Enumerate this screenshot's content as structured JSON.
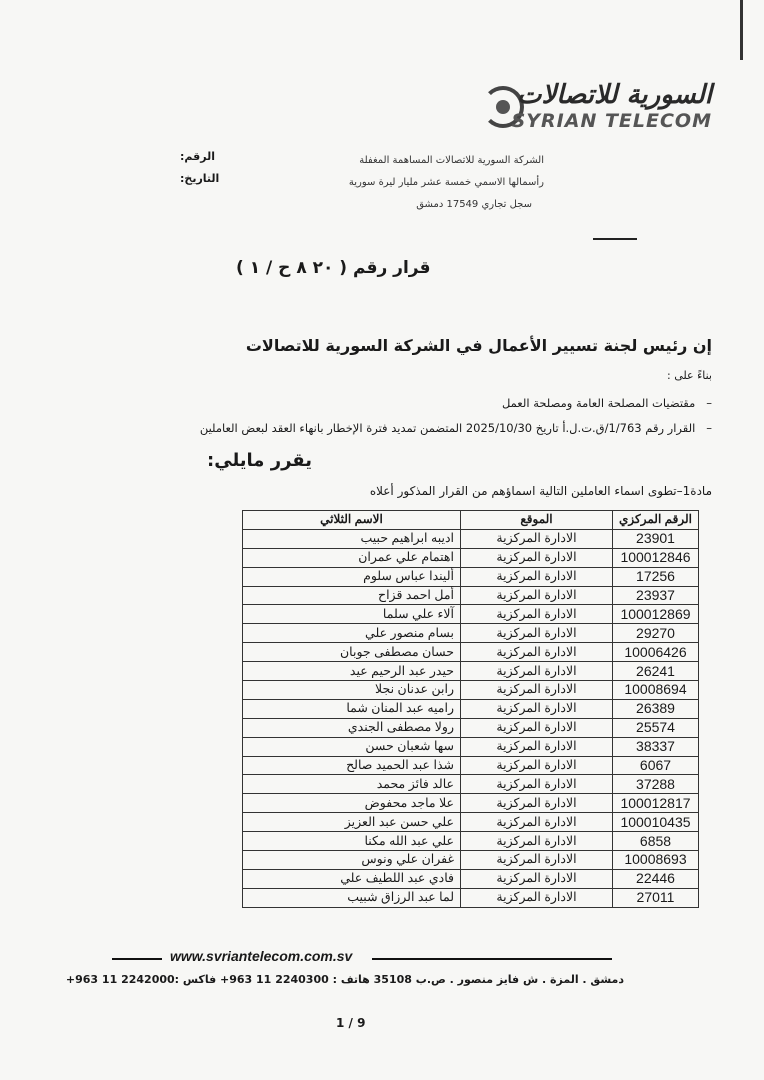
{
  "letterhead": {
    "logo_ar": "السورية للاتصالات",
    "logo_en": "SYRIAN TELECOM",
    "company_lines": [
      "الشركة السورية للاتصالات المساهمة المغفلة",
      "رأسمالها الاسمي خمسة عشر مليار ليرة سورية",
      "سجل تجاري 17549 دمشق"
    ],
    "number_label": "الرقم:",
    "date_label": "التاريخ:"
  },
  "decision": {
    "title": "قرار رقم (  ٢٠ ٨ ح / ١  )",
    "heading": "إن رئيس لجنة تسيير الأعمال في الشركة السورية للاتصالات",
    "based_on": "بناءً على :",
    "bullets": [
      "مقتضيات المصلحة العامة ومصلحة العمل",
      "القرار رقم 1/763/ق.ت.ل.أ تاريخ 2025/10/30 المتضمن تمديد فترة الإخطار بانهاء العقد لبعض العاملين"
    ],
    "decides": "يقرر مايلي:",
    "article1": "مادة1–تطوى اسماء العاملين التالية اسماؤهم من القرار المذكور أعلاه"
  },
  "table": {
    "headers": {
      "id": "الرقم المركزي",
      "location": "الموقع",
      "name": "الاسم الثلاثي"
    },
    "rows": [
      {
        "id": "23901",
        "location": "الادارة المركزية",
        "name": "اديبه ابراهيم حبيب"
      },
      {
        "id": "100012846",
        "location": "الادارة المركزية",
        "name": "اهتمام علي عمران"
      },
      {
        "id": "17256",
        "location": "الادارة المركزية",
        "name": "أليندا عباس سلوم"
      },
      {
        "id": "23937",
        "location": "الادارة المركزية",
        "name": "أمل احمد قزاح"
      },
      {
        "id": "100012869",
        "location": "الادارة المركزية",
        "name": "آلاء علي سلما"
      },
      {
        "id": "29270",
        "location": "الادارة المركزية",
        "name": "بسام منصور علي"
      },
      {
        "id": "10006426",
        "location": "الادارة المركزية",
        "name": "حسان مصطفى جوبان"
      },
      {
        "id": "26241",
        "location": "الادارة المركزية",
        "name": "حيدر عبد الرحيم عيد"
      },
      {
        "id": "10008694",
        "location": "الادارة المركزية",
        "name": "رابن عدنان نجلا"
      },
      {
        "id": "26389",
        "location": "الادارة المركزية",
        "name": "راميه عبد المنان شما"
      },
      {
        "id": "25574",
        "location": "الادارة المركزية",
        "name": "رولا مصطفى الجندي"
      },
      {
        "id": "38337",
        "location": "الادارة المركزية",
        "name": "سها شعبان حسن"
      },
      {
        "id": "6067",
        "location": "الادارة المركزية",
        "name": "شذا عبد الحميد صالح"
      },
      {
        "id": "37288",
        "location": "الادارة المركزية",
        "name": "عالد فائز محمد"
      },
      {
        "id": "100012817",
        "location": "الادارة المركزية",
        "name": "علا ماجد محفوض"
      },
      {
        "id": "100010435",
        "location": "الادارة المركزية",
        "name": "علي حسن عبد العزيز"
      },
      {
        "id": "6858",
        "location": "الادارة المركزية",
        "name": "علي عبد الله مكنا"
      },
      {
        "id": "10008693",
        "location": "الادارة المركزية",
        "name": "غفران علي ونوس"
      },
      {
        "id": "22446",
        "location": "الادارة المركزية",
        "name": "فادي عبد اللطيف علي"
      },
      {
        "id": "27011",
        "location": "الادارة المركزية",
        "name": "لما عبد الرزاق شبيب"
      }
    ]
  },
  "footer": {
    "website": "www.svriantelecom.com.sv",
    "address": "دمشق . المزة . ش فايز منصور . ص.ب 35108   هاتف : 2240300 11 963+   فاكس :2242000 11 963+",
    "page": "1 / 9"
  }
}
